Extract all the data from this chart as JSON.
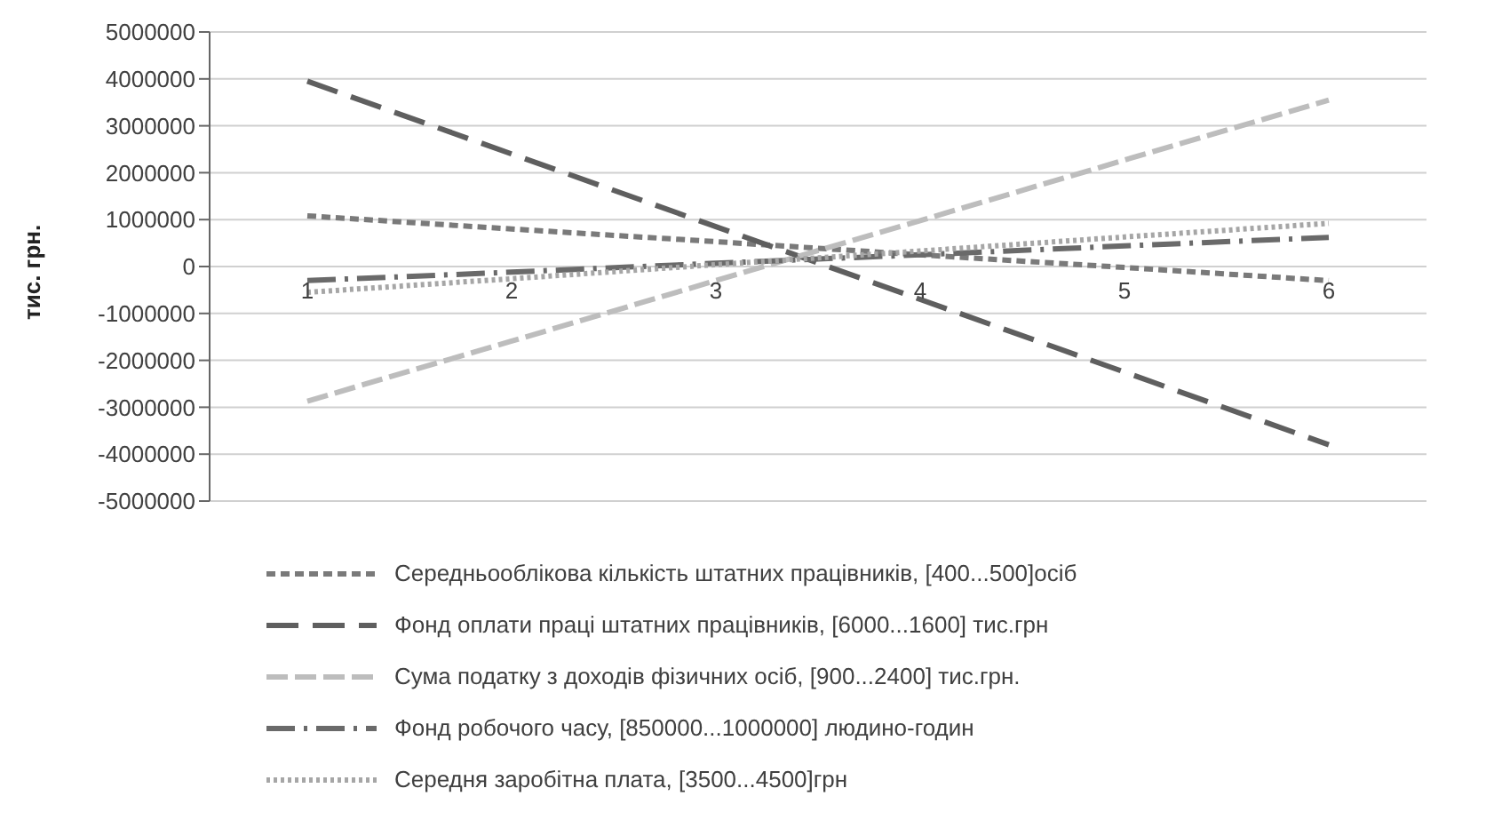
{
  "chart_data": {
    "type": "line",
    "ylabel": "тис. грн.",
    "categories": [
      "1",
      "2",
      "3",
      "4",
      "5",
      "6"
    ],
    "ylim": [
      -5000000,
      5000000
    ],
    "yticks": [
      -5000000,
      -4000000,
      -3000000,
      -2000000,
      -1000000,
      0,
      1000000,
      2000000,
      3000000,
      4000000,
      5000000
    ],
    "grid": "y",
    "legend": "bottom",
    "marker": "none",
    "series": [
      {
        "name": "Середньооблікова кількість штатних працівників, [400...500]осіб",
        "color": "#7a7a7a",
        "line_style": "dashed",
        "values": [
          1080000,
          800000,
          530000,
          250000,
          -20000,
          -300000
        ]
      },
      {
        "name": "Фонд оплати праці штатних працівників, [6000...1600] тис.грн",
        "color": "#5f5f5f",
        "line_style": "dashed",
        "values": [
          3950000,
          2400000,
          850000,
          -700000,
          -2250000,
          -3800000
        ]
      },
      {
        "name": "Сума податку з доходів фізичних осіб, [900...2400] тис.грн.",
        "color": "#bdbdbd",
        "line_style": "dashed",
        "values": [
          -2870000,
          -1590000,
          -300000,
          980000,
          2270000,
          3550000
        ]
      },
      {
        "name": "Фонд робочого часу, [850000...1000000] людино-годин",
        "color": "#6a6a6a",
        "line_style": "dashed",
        "values": [
          -300000,
          -120000,
          70000,
          250000,
          440000,
          620000
        ]
      },
      {
        "name": "Середня заробітна плата, [3500...4500]грн",
        "color": "#a6a6a6",
        "line_style": "dotted",
        "values": [
          -550000,
          -260000,
          40000,
          330000,
          630000,
          920000
        ]
      }
    ]
  }
}
